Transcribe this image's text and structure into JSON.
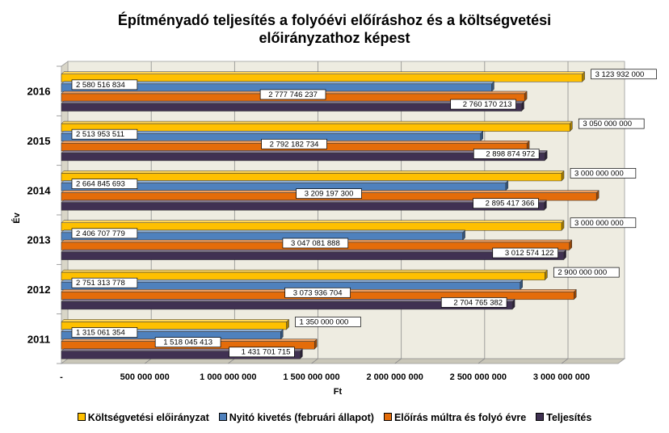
{
  "chart_data": {
    "type": "bar",
    "orientation": "horizontal",
    "title": [
      "Építményadó teljesítés a folyóévi előíráshoz és a költségvetési",
      "előirányzathoz képest"
    ],
    "xlabel": "Ft",
    "ylabel": "Év",
    "xlim": [
      0,
      3000000000
    ],
    "x_ticks": [
      0,
      500000000,
      1000000000,
      1500000000,
      2000000000,
      2500000000,
      3000000000
    ],
    "x_tick_labels": [
      "-",
      "500 000 000",
      "1 000 000 000",
      "1 500 000 000",
      "2 000 000 000",
      "2 500 000 000",
      "3 000 000 000"
    ],
    "categories": [
      "2011",
      "2012",
      "2013",
      "2014",
      "2015",
      "2016"
    ],
    "grid": true,
    "legend_position": "bottom",
    "series": [
      {
        "name": "Költségvetési előirányzat",
        "color": "#FFC000",
        "values": [
          1350000000,
          2900000000,
          3000000000,
          3000000000,
          3050000000,
          3123932000
        ],
        "labels": [
          "1 350 000 000",
          "2 900 000 000",
          "3 000 000 000",
          "3 000 000 000",
          "3 050 000 000",
          "3 123 932 000"
        ]
      },
      {
        "name": "Nyitó kivetés (februári állapot)",
        "color": "#4F81BD",
        "values": [
          1315061354,
          2751313778,
          2406707779,
          2664845693,
          2513953511,
          2580516834
        ],
        "labels": [
          "1 315 061 354",
          "2 751 313 778",
          "2 406 707 779",
          "2 664 845 693",
          "2 513 953 511",
          "2 580 516 834"
        ]
      },
      {
        "name": "Előírás múltra és folyó évre",
        "color": "#E46C0A",
        "values": [
          1518045413,
          3073936704,
          3047081888,
          3209197300,
          2792182734,
          2777746237
        ],
        "labels": [
          "1 518 045 413",
          "3 073 936 704",
          "3 047 081 888",
          "3 209 197 300",
          "2 792 182 734",
          "2 777 746 237"
        ]
      },
      {
        "name": "Teljesítés",
        "color": "#403152",
        "values": [
          1431701715,
          2704765382,
          3012574122,
          2895417366,
          2898874972,
          2760170213
        ],
        "labels": [
          "1 431 701 715",
          "2 704 765 382",
          "3 012 574 122",
          "2 895 417 366",
          "2 898 874 972",
          "2 760 170 213"
        ]
      }
    ]
  }
}
